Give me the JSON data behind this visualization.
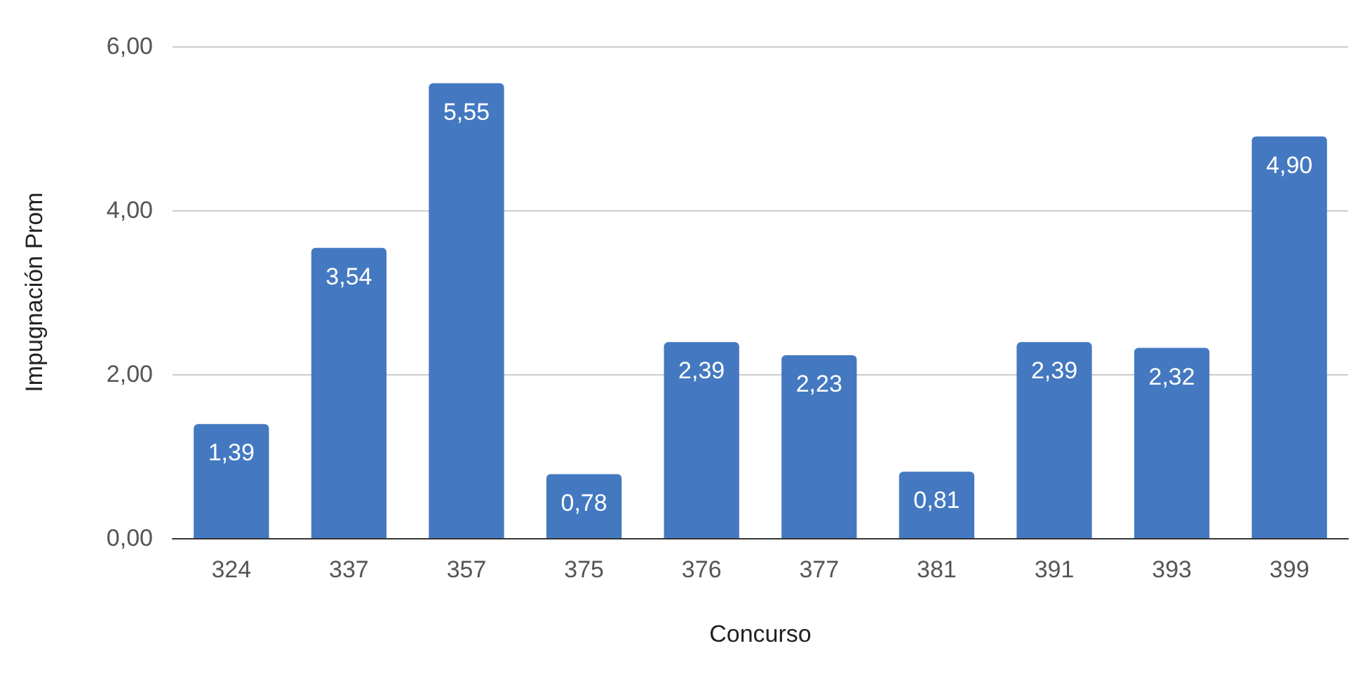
{
  "chart_data": {
    "type": "bar",
    "xlabel": "Concurso",
    "ylabel": "Impugnación Prom",
    "categories": [
      "324",
      "337",
      "357",
      "375",
      "376",
      "377",
      "381",
      "391",
      "393",
      "399"
    ],
    "values": [
      1.39,
      3.54,
      5.55,
      0.78,
      2.39,
      2.23,
      0.81,
      2.39,
      2.32,
      4.9
    ],
    "value_labels": [
      "1,39",
      "3,54",
      "5,55",
      "0,78",
      "2,39",
      "2,23",
      "0,81",
      "2,39",
      "2,32",
      "4,90"
    ],
    "color": "#4479c1",
    "ylim": [
      0,
      6
    ],
    "yticks": [
      {
        "value": 0,
        "label": "0,00"
      },
      {
        "value": 2,
        "label": "2,00"
      },
      {
        "value": 4,
        "label": "4,00"
      },
      {
        "value": 6,
        "label": "6,00"
      }
    ],
    "grid": "y"
  }
}
